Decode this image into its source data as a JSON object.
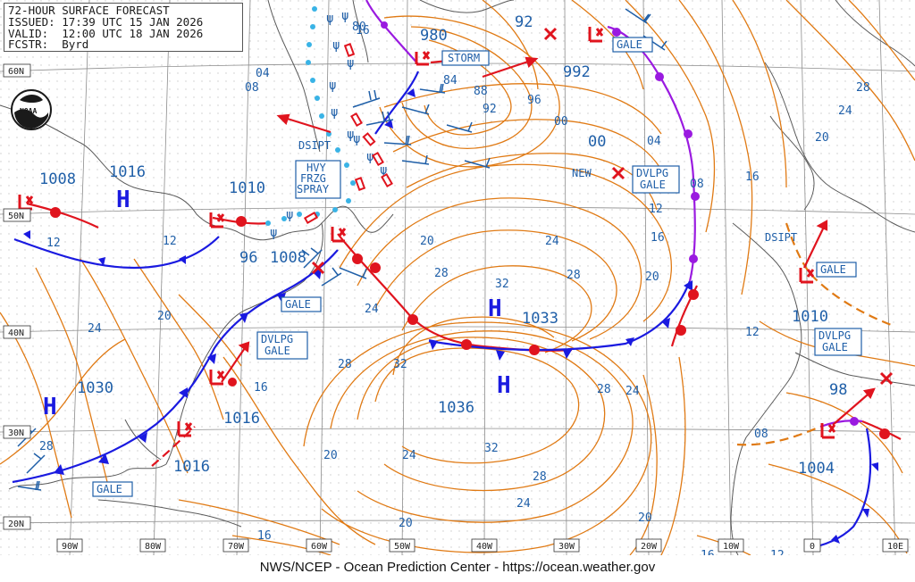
{
  "header": {
    "line1": "72-HOUR SURFACE FORECAST",
    "line2": "ISSUED: 17:39 UTC 15 JAN 2026",
    "line3": "VALID:  12:00 UTC 18 JAN 2026",
    "line4": "FCSTR:  Byrd"
  },
  "footer": "NWS/NCEP - Ocean Prediction Center - https://ocean.weather.gov",
  "logo": "NOAA",
  "lat_labels": [
    "60N",
    "50N",
    "40N",
    "30N",
    "20N"
  ],
  "lon_labels": [
    "90W",
    "80W",
    "70W",
    "60W",
    "50W",
    "40W",
    "30W",
    "20W",
    "10W",
    "0",
    "10E"
  ],
  "centers": {
    "h1": "H",
    "h1_val": "1016",
    "h1_alt": "1008",
    "h2": "H",
    "h2_val": "1033",
    "h3": "H",
    "h3_val": "1036",
    "h4": "H",
    "h4_val": "1030",
    "l1_val": "980",
    "l2_val": "92",
    "l3_val": "992",
    "l4_val": "00",
    "l5_val": "1010",
    "l6_val": "96",
    "l7_val": "1008",
    "l8_val": "1016",
    "l9_val": "1016",
    "l10_val": "1010",
    "l11_val": "98",
    "l12_val": "1004"
  },
  "warnings": {
    "storm": "STORM",
    "gale1": "GALE",
    "gale2": "GALE",
    "gale3": "GALE",
    "gale4": "GALE",
    "hfs": "HVY\nFRZG\nSPRAY",
    "dvlpg1": "DVLPG\nGALE",
    "dvlpg2": "DVLPG\nGALE",
    "dvlpg3": "DVLPG\nGALE",
    "dsipt1": "DSIPT",
    "dsipt2": "DSIPT",
    "new": "NEW"
  },
  "isobar_labels": [
    "04",
    "08",
    "12",
    "16",
    "20",
    "24",
    "28",
    "32",
    "00",
    "84",
    "88",
    "92",
    "96",
    "80",
    "12",
    "20",
    "24",
    "28",
    "32",
    "28",
    "24",
    "20",
    "16",
    "12",
    "16",
    "20",
    "24",
    "28",
    "04",
    "08",
    "12",
    "16",
    "20",
    "24",
    "28",
    "08",
    "12",
    "16",
    "20",
    "24",
    "28",
    "32",
    "28",
    "24",
    "20",
    "16"
  ],
  "colors": {
    "isobar": "#e07a14",
    "warm_front": "#e0141e",
    "cold_front": "#1a1ae0",
    "occluded_front": "#9a1ae0",
    "low": "#e0141e",
    "high": "#1a1ae0",
    "label": "#1f5fa8",
    "ice": "#39b3e6"
  }
}
